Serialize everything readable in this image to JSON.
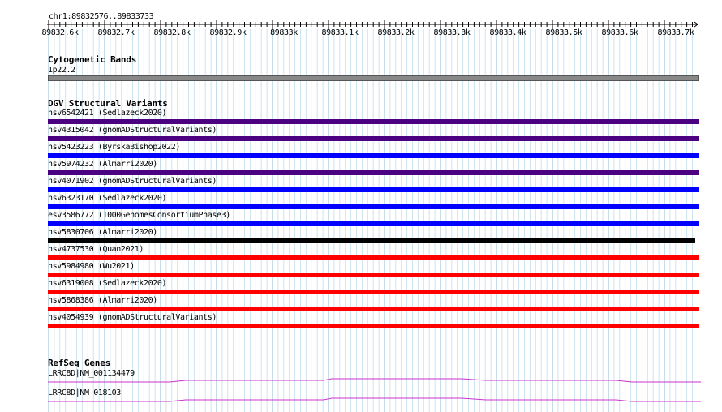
{
  "ruler": {
    "region": "chr1:89832576..89833733",
    "ticks": [
      "89832.6k",
      "89832.7k",
      "89832.8k",
      "89832.9k",
      "89833k",
      "89833.1k",
      "89833.2k",
      "89833.3k",
      "89833.4k",
      "89833.5k",
      "89833.6k",
      "89833.7k"
    ]
  },
  "cytoband": {
    "title": "Cytogenetic Bands",
    "band_label": "1p22.2",
    "color": "#888888"
  },
  "dgv": {
    "title": "DGV Structural Variants",
    "variants": [
      {
        "label": "nsv6542421 (Sedlazeck2020)",
        "color": "#4b0082"
      },
      {
        "label": "nsv4315042 (gnomADStructuralVariants)",
        "color": "#4b0082"
      },
      {
        "label": "nsv5423223 (ByrskaBishop2022)",
        "color": "#0000ff"
      },
      {
        "label": "nsv5974232 (Almarri2020)",
        "color": "#4b0082"
      },
      {
        "label": "nsv4071902 (gnomADStructuralVariants)",
        "color": "#0000ff"
      },
      {
        "label": "nsv6323170 (Sedlazeck2020)",
        "color": "#0000ff"
      },
      {
        "label": "esv3586772 (1000GenomesConsortiumPhase3)",
        "color": "#0000ff"
      },
      {
        "label": "nsv5830706 (Almarri2020)",
        "color": "#000000"
      },
      {
        "label": "nsv4737530 (Quan2021)",
        "color": "#ff0000"
      },
      {
        "label": "nsv5984980 (Wu2021)",
        "color": "#ff0000"
      },
      {
        "label": "nsv6319008 (Sedlazeck2020)",
        "color": "#ff0000"
      },
      {
        "label": "nsv5868386 (Almarri2020)",
        "color": "#ff0000"
      },
      {
        "label": "nsv4054939 (gnomADStructuralVariants)",
        "color": "#ff0000"
      }
    ]
  },
  "refseq": {
    "title": "RefSeq Genes",
    "genes": [
      {
        "label": "LRRC8D|NM_001134479",
        "color": "#cc33cc"
      },
      {
        "label": "LRRC8D|NM_018103",
        "color": "#cc33cc"
      }
    ]
  },
  "colors": {
    "grid_major": "#8fbcd4",
    "grid_minor": "#cde3ee",
    "ruler": "#000000"
  }
}
